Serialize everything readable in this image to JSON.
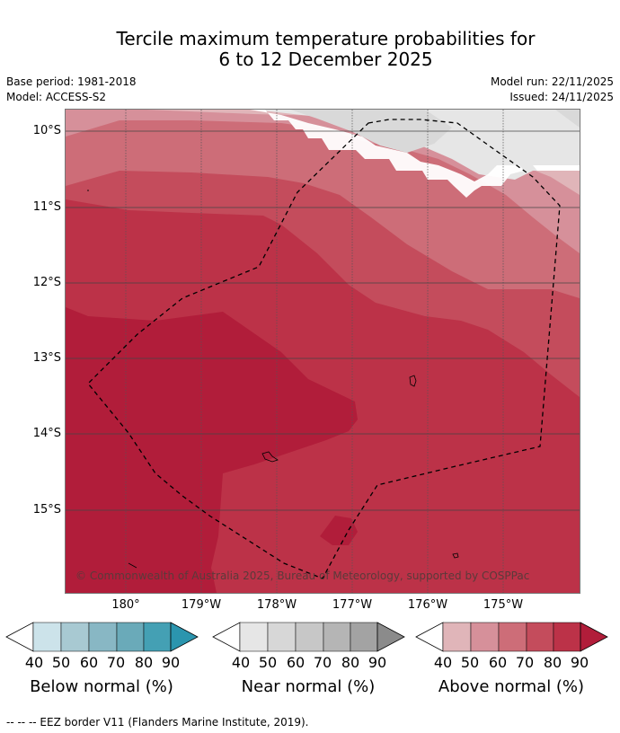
{
  "title": {
    "line1": "Tercile maximum temperature probabilities for",
    "line2": "6 to 12 December 2025"
  },
  "meta": {
    "base_period": "Base period: 1981-2018",
    "model": "Model: ACCESS-S2",
    "model_run": "Model run: 22/11/2025",
    "issued": "Issued: 24/11/2025"
  },
  "map": {
    "lat_labels": [
      "10°S",
      "11°S",
      "12°S",
      "13°S",
      "14°S",
      "15°S"
    ],
    "lon_labels": [
      "180°",
      "179°W",
      "178°W",
      "177°W",
      "176°W",
      "175°W"
    ],
    "copyright": "© Commonwealth of Australia 2025, Bureau of Meteorology, supported by COSPPac",
    "palette": {
      "above_40": "#e0b5b9",
      "above_50": "#d6909a",
      "above_60": "#cd6d78",
      "above_70": "#c44c5c",
      "above_80": "#bc3248",
      "above_90": "#b11d3a",
      "near_40": "#e6e6e6",
      "near_50": "#d9d9d9"
    }
  },
  "colorbars": [
    {
      "label": "Below normal (%)",
      "ticks": [
        "40",
        "50",
        "60",
        "70",
        "80",
        "90"
      ],
      "colors": [
        "#cce3ea",
        "#a8c9d2",
        "#88b7c4",
        "#6aaab9",
        "#44a0b4",
        "#2b95ae"
      ]
    },
    {
      "label": "Near normal (%)",
      "ticks": [
        "40",
        "50",
        "60",
        "70",
        "80",
        "90"
      ],
      "colors": [
        "#e6e6e6",
        "#d7d7d7",
        "#c7c7c7",
        "#b5b5b5",
        "#a3a3a3",
        "#8b8b8b"
      ]
    },
    {
      "label": "Above normal (%)",
      "ticks": [
        "40",
        "50",
        "60",
        "70",
        "80",
        "90"
      ],
      "colors": [
        "#e0b5b9",
        "#d6909a",
        "#cd6d78",
        "#c44c5c",
        "#bc3248",
        "#b11d3a"
      ]
    }
  ],
  "footnote": "--  --  -- EEZ border V11 (Flanders Marine Institute, 2019)."
}
